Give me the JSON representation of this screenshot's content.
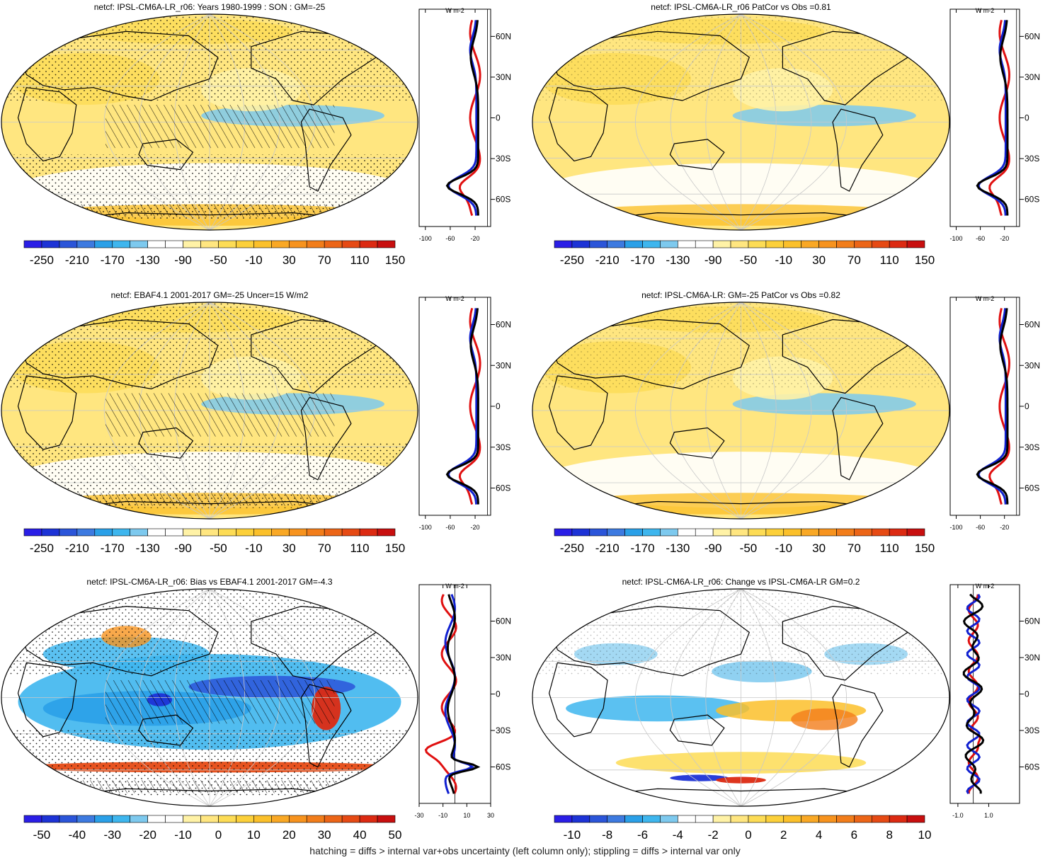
{
  "footnote": "hatching = diffs > internal var+obs uncertainty (left column only); stippling = diffs > internal var only",
  "zonal_unit": "W m-2",
  "lat_labels": [
    "60N",
    "30N",
    "0",
    "30S",
    "60S"
  ],
  "colorbars": {
    "main": {
      "labels": [
        "-250",
        "-210",
        "-170",
        "-130",
        "-90",
        "-50",
        "-10",
        "30",
        "70",
        "110",
        "150"
      ],
      "colors": [
        "#2a1ee6",
        "#1d33d6",
        "#2b55d9",
        "#3d7ae0",
        "#2aa0e8",
        "#3eb6ee",
        "#7dc9ee",
        "#ffffff",
        "#ffffff",
        "#fff2a6",
        "#ffe680",
        "#fddc55",
        "#fcd03a",
        "#fbc02a",
        "#f9a825",
        "#f7931e",
        "#f27d1a",
        "#ec6517",
        "#e64a14",
        "#dc2a12",
        "#c80f0f"
      ]
    },
    "bias": {
      "labels": [
        "-50",
        "-40",
        "-30",
        "-20",
        "-10",
        "0",
        "10",
        "20",
        "30",
        "40",
        "50"
      ],
      "colors": [
        "#2a1ee6",
        "#1d33d6",
        "#2b55d9",
        "#3d7ae0",
        "#2aa0e8",
        "#3eb6ee",
        "#7dc9ee",
        "#ffffff",
        "#ffffff",
        "#fff2a6",
        "#ffe680",
        "#fddc55",
        "#fcd03a",
        "#fbc02a",
        "#f9a825",
        "#f7931e",
        "#f27d1a",
        "#ec6517",
        "#e64a14",
        "#dc2a12",
        "#c80f0f"
      ]
    },
    "change": {
      "labels": [
        "-10",
        "-8",
        "-6",
        "-4",
        "-2",
        "0",
        "2",
        "4",
        "6",
        "8",
        "10"
      ],
      "colors": [
        "#2a1ee6",
        "#1d33d6",
        "#2b55d9",
        "#3d7ae0",
        "#2aa0e8",
        "#3eb6ee",
        "#7dc9ee",
        "#ffffff",
        "#ffffff",
        "#fff2a6",
        "#ffe680",
        "#fddc55",
        "#fcd03a",
        "#fbc02a",
        "#f9a825",
        "#f7931e",
        "#f27d1a",
        "#ec6517",
        "#e64a14",
        "#dc2a12",
        "#c80f0f"
      ]
    }
  },
  "panels": [
    {
      "id": "p1",
      "title": "netcf: IPSL-CM6A-LR_r06: Years 1980-1999 : SON : GM=-25",
      "cb": "main",
      "zx": [
        "-100",
        "-60",
        "-20"
      ],
      "zx_vals": [
        -100,
        -60,
        -20
      ],
      "zrange": [
        -110,
        5
      ],
      "lat_range": [
        -80,
        80
      ],
      "lat_ticks": [
        60,
        30,
        0,
        -30,
        -60
      ],
      "base": "yellow",
      "hatch": true
    },
    {
      "id": "p2",
      "title": "netcf: IPSL-CM6A-LR_r06 PatCor vs Obs =0.81",
      "cb": "main",
      "zx": [
        "-100",
        "-60",
        "-20"
      ],
      "zx_vals": [
        -100,
        -60,
        -20
      ],
      "zrange": [
        -110,
        5
      ],
      "lat_range": [
        -80,
        80
      ],
      "lat_ticks": [
        60,
        30,
        0,
        -30,
        -60
      ],
      "base": "yellow",
      "hatch": false
    },
    {
      "id": "p3",
      "title": "netcf: EBAF4.1 2001-2017 GM=-25 Uncer=15 W/m2",
      "cb": "main",
      "zx": [
        "-100",
        "-60",
        "-20"
      ],
      "zx_vals": [
        -100,
        -60,
        -20
      ],
      "zrange": [
        -110,
        5
      ],
      "lat_range": [
        -80,
        80
      ],
      "lat_ticks": [
        60,
        30,
        0,
        -30,
        -60
      ],
      "base": "yellow",
      "hatch": true
    },
    {
      "id": "p4",
      "title": "netcf: IPSL-CM6A-LR: GM=-25 PatCor vs Obs =0.82",
      "cb": "main",
      "zx": [
        "-100",
        "-60",
        "-20"
      ],
      "zx_vals": [
        -100,
        -60,
        -20
      ],
      "zrange": [
        -110,
        5
      ],
      "lat_range": [
        -80,
        80
      ],
      "lat_ticks": [
        60,
        30,
        0,
        -30,
        -60
      ],
      "base": "yellow",
      "hatch": false
    },
    {
      "id": "p5",
      "title": "netcf: IPSL-CM6A-LR_r06: Bias vs EBAF4.1 2001-2017  GM=-4.3",
      "cb": "bias",
      "zx": [
        "-30",
        "-10",
        "10",
        "30"
      ],
      "zx_vals": [
        -30,
        -10,
        10,
        30
      ],
      "zrange": [
        -30,
        30
      ],
      "lat_range": [
        -90,
        90
      ],
      "lat_ticks": [
        60,
        30,
        0,
        -30,
        -60
      ],
      "base": "bias",
      "hatch": true
    },
    {
      "id": "p6",
      "title": "netcf: IPSL-CM6A-LR_r06: Change vs IPSL-CM6A-LR GM=0.2",
      "cb": "change",
      "zx": [
        "-1.0",
        "1.0"
      ],
      "zx_vals": [
        -1,
        1
      ],
      "zrange": [
        -1.5,
        3
      ],
      "lat_range": [
        -90,
        90
      ],
      "lat_ticks": [
        60,
        30,
        0,
        -30,
        -60
      ],
      "base": "change",
      "hatch": false
    }
  ]
}
